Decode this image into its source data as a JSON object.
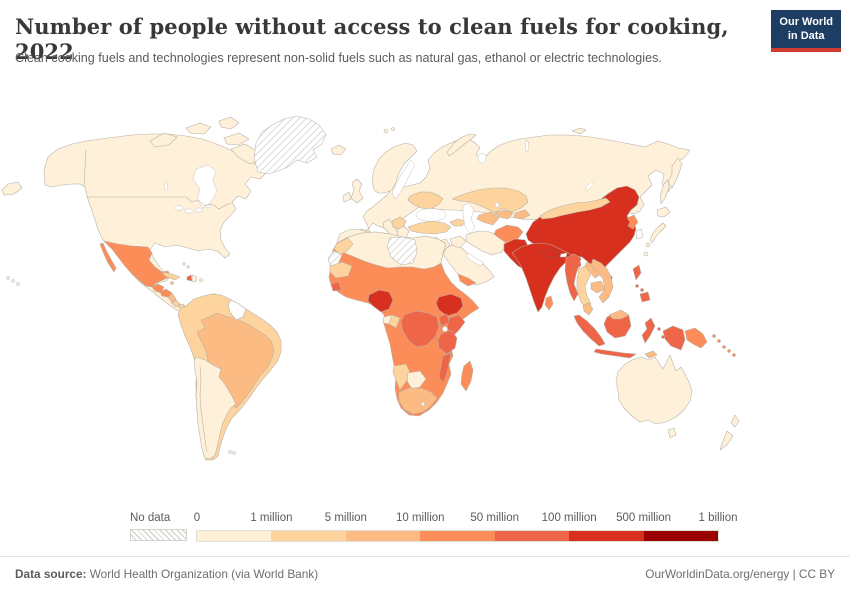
{
  "header": {
    "title": "Number of people without access to clean fuels for cooking, 2022",
    "subtitle": "Clean cooking fuels and technologies represent non-solid fuels such as natural gas, ethanol or electric technologies.",
    "logo": {
      "line1": "Our World",
      "line2": "in Data",
      "bg_color": "#1d3d63",
      "accent_color": "#cf3a31"
    }
  },
  "legend": {
    "no_data_label": "No data",
    "tick_labels": [
      "0",
      "1 million",
      "5 million",
      "10 million",
      "50 million",
      "100 million",
      "500 million",
      "1 billion"
    ],
    "bins": [
      {
        "label": "0–1 million",
        "color": "#fef0d9"
      },
      {
        "label": "1–5 million",
        "color": "#fdd49e"
      },
      {
        "label": "5–10 million",
        "color": "#fdbb84"
      },
      {
        "label": "10–50 million",
        "color": "#fc8d59"
      },
      {
        "label": "50–100 million",
        "color": "#ef6548"
      },
      {
        "label": "100–500 million",
        "color": "#d7301f"
      },
      {
        "label": "500 million–1 billion",
        "color": "#990000"
      }
    ]
  },
  "footer": {
    "source_label": "Data source:",
    "source_text": " World Health Organization (via World Bank)",
    "right_text": "OurWorldinData.org/energy | CC BY"
  },
  "chart_data": {
    "type": "choropleth",
    "title": "Number of people without access to clean fuels for cooking, 2022",
    "unit": "people",
    "legend_bins": [
      {
        "range": "No data",
        "color": "hatched"
      },
      {
        "range": "0-1 million",
        "color": "#fef0d9"
      },
      {
        "range": "1-5 million",
        "color": "#fdd49e"
      },
      {
        "range": "5-10 million",
        "color": "#fdbb84"
      },
      {
        "range": "10-50 million",
        "color": "#fc8d59"
      },
      {
        "range": "50-100 million",
        "color": "#ef6548"
      },
      {
        "range": "100-500 million",
        "color": "#d7301f"
      },
      {
        "range": "500 million-1 billion",
        "color": "#990000"
      }
    ],
    "regions_by_bin": {
      "No data": [
        "Greenland",
        "Libya",
        "Western Sahara"
      ],
      "0-1 million": [
        "Canada",
        "United States",
        "Argentina",
        "Chile",
        "Uruguay",
        "Guyana",
        "Most of Europe",
        "Russia",
        "Japan",
        "South Korea",
        "Taiwan",
        "Saudi Arabia",
        "Iran",
        "Iraq",
        "Algeria",
        "Tunisia",
        "Egypt",
        "Botswana",
        "Gabon",
        "Australia",
        "New Zealand"
      ],
      "1-5 million": [
        "Mexico? no",
        "Morocco",
        "Mauritania",
        "Ukraine",
        "Turkey",
        "Kazakhstan",
        "Mongolia",
        "Thailand",
        "Colombia",
        "Venezuela",
        "Ecuador",
        "Peru",
        "Bolivia",
        "Paraguay",
        "Cuba",
        "Namibia",
        "Congo",
        "Costa Rica",
        "Panama"
      ],
      "5-10 million": [
        "Brazil",
        "South Africa",
        "Uzbekistan",
        "Turkmenistan",
        "Vietnam",
        "Laos",
        "Cambodia",
        "Malaysia",
        "Nicaragua"
      ],
      "10-50 million": [
        "Mexico",
        "Guatemala",
        "Honduras",
        "Senegal",
        "Mali",
        "Niger",
        "Chad",
        "Sudan",
        "Somalia",
        "Ghana",
        "Côte d'Ivoire",
        "Cameroon",
        "Yemen",
        "Angola",
        "Zambia",
        "Zimbabwe",
        "Madagascar",
        "Afghanistan",
        "North Korea",
        "Sri Lanka",
        "Papua New Guinea"
      ],
      "50-100 million": [
        "DR Congo",
        "Kenya",
        "Tanzania",
        "Uganda",
        "Mozambique",
        "Guinea",
        "Haiti",
        "Myanmar",
        "Indonesia",
        "Philippines"
      ],
      "100-500 million": [
        "China",
        "India",
        "Pakistan",
        "Bangladesh",
        "Nepal",
        "Nigeria",
        "Ethiopia"
      ],
      "500 million-1 billion": []
    }
  },
  "map": {
    "border_color": "#b6afa6",
    "region_fills": {
      "na_mainland": "#fef0d9",
      "arctic1": "#fef0d9",
      "arctic2": "#fef0d9",
      "arctic3": "#fef0d9",
      "arctic4": "#fef0d9",
      "arctic5": "#fef0d9",
      "greenland": "nodata",
      "iceland": "#fef0d9",
      "hawaii": "#ffffff",
      "baja": "#fc8d59",
      "mexico": "#fc8d59",
      "guatemala": "#fc8d59",
      "honduras": "#fc8d59",
      "nicaragua": "#fdbb84",
      "costa_rica": "#fdd49e",
      "panama": "#fdd49e",
      "cuba": "#fdd49e",
      "jamaica": "#fdbb84",
      "haiti": "#ef6548",
      "dominican": "#fef0d9",
      "puerto_rico": "#fef0d9",
      "bahamas1": "#fef0d9",
      "bahamas2": "#fef0d9",
      "trinidad": "#fdd49e",
      "sa_mainland": "#fdd49e",
      "brazil": "#fdbb84",
      "guyanas": "#ffffff",
      "southern_cone": "#fef0d9",
      "falkland1": "#ffffff",
      "falkland2": "#ffffff",
      "eurasia": "#fef0d9",
      "scandinavia": "#fef0d9",
      "uk": "#fef0d9",
      "ireland": "#fef0d9",
      "iberia": "#fef0d9",
      "italy": "#fef0d9",
      "sicily": "#fef0d9",
      "sardinia": "#fef0d9",
      "corsica": "#fef0d9",
      "greece": "#fef0d9",
      "crete": "#fef0d9",
      "balkans": "#fdd49e",
      "ukraine": "#fdd49e",
      "turkey": "#fdd49e",
      "cyprus": "#fef0d9",
      "caucasus": "#fdd49e",
      "novaya": "#fef0d9",
      "svalbard1": "#fef0d9",
      "svalbard2": "#fef0d9",
      "new_siberian": "#fef0d9",
      "chukotka_w": "#fef0d9",
      "kamchatka": "#fef0d9",
      "sakhalin": "#fef0d9",
      "kazakhstan": "#fdd49e",
      "uzbekistan": "#fdbb84",
      "turkmenistan": "#fdbb84",
      "kyrgyz_tajik": "#fdbb84",
      "mongolia": "#fdd49e",
      "china": "#d7301f",
      "hainan": "#d7301f",
      "taiwan": "#fef0d9",
      "north_korea": "#fc8d59",
      "south_korea": "#ffffff",
      "jp_hokkaido": "#fef0d9",
      "jp_honshu": "#fef0d9",
      "jp_kyushu": "#fef0d9",
      "afghanistan": "#fc8d59",
      "pakistan": "#d7301f",
      "india": "#d7301f",
      "nepal": "#d7301f",
      "bhutan": "#ffffff",
      "bangladesh": "#d7301f",
      "sri_lanka": "#fc8d59",
      "myanmar": "#ef6548",
      "thailand": "#fdd49e",
      "laos": "#fdbb84",
      "cambodia": "#fdbb84",
      "vietnam": "#fdbb84",
      "malaysia_pen": "#fdbb84",
      "malaysia_borneo": "#fdbb84",
      "ph_luzon": "#ef6548",
      "ph_mid1": "#ef6548",
      "ph_mid2": "#ef6548",
      "ph_mindanao": "#ef6548",
      "sumatra": "#ef6548",
      "java": "#ef6548",
      "borneo_id": "#ef6548",
      "sulawesi": "#ef6548",
      "moluccas1": "#ef6548",
      "moluccas2": "#ef6548",
      "timor": "#fdbb84",
      "papua_id": "#ef6548",
      "png": "#fc8d59",
      "png_isl1": "#fc8d59",
      "png_isl2": "#fc8d59",
      "solomon1": "#fc8d59",
      "solomon2": "#fc8d59",
      "solomon3": "#fc8d59",
      "australia": "#fef0d9",
      "tasmania": "#fef0d9",
      "nz_north": "#fef0d9",
      "nz_south": "#fef0d9",
      "africa_mainland": "#fc8d59",
      "north_africa": "#fef0d9",
      "morocco": "#fdd49e",
      "western_sahara": "nodata",
      "mauritania": "#fdd49e",
      "libya": "nodata",
      "guinea": "#ef6548",
      "nigeria": "#d7301f",
      "ethiopia": "#d7301f",
      "uganda": "#ef6548",
      "kenya": "#ef6548",
      "tanzania": "#ef6548",
      "drc": "#ef6548",
      "mozambique": "#ef6548",
      "namibia": "#fdd49e",
      "botswana": "#fef0d9",
      "south_africa": "#fdbb84",
      "lesotho": "#fef0d9",
      "gabon": "#fef0d9",
      "congo": "#fdd49e",
      "madagascar": "#fc8d59",
      "arabia": "#fef0d9",
      "yemen": "#fc8d59",
      "levant": "#fef0d9",
      "iraq": "#fef0d9",
      "iran": "#fef0d9"
    }
  }
}
